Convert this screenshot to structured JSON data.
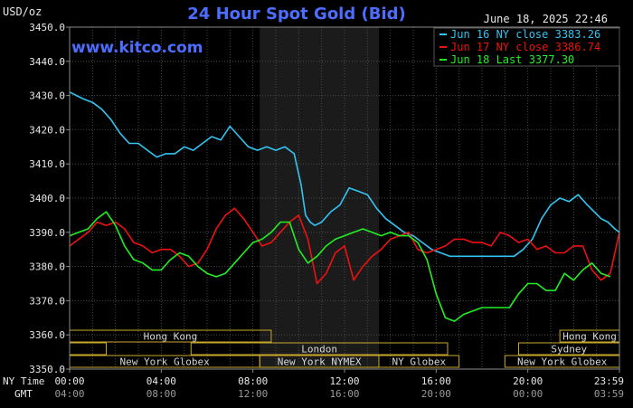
{
  "chart_data": {
    "type": "line",
    "title": "24 Hour Spot Gold (Bid)",
    "watermark": "www.kitco.com",
    "unit_label": "USD/oz",
    "timestamp": "June 18, 2025 22:46",
    "ylim": [
      3350,
      3450
    ],
    "y_ticks": [
      "3450.0",
      "3440.0",
      "3430.0",
      "3420.0",
      "3410.0",
      "3400.0",
      "3390.0",
      "3380.0",
      "3370.0",
      "3360.0",
      "3350.0"
    ],
    "x_axis_label": "NY Time",
    "x_ticks": [
      "00:00",
      "04:00",
      "08:00",
      "12:00",
      "16:00",
      "20:00",
      "23:59"
    ],
    "gmt_axis_label": "GMT",
    "gmt_ticks": [
      "04:00",
      "08:00",
      "12:00",
      "16:00",
      "20:00",
      "00:00",
      "03:59"
    ],
    "xlim": [
      0,
      24
    ],
    "grid": true,
    "legend_position": "top-right",
    "shaded_region": [
      8.3,
      13.5
    ],
    "series": [
      {
        "name": "Jun 16 NY close 3383.26",
        "color": "#33c4f2",
        "x": [
          0,
          0.3,
          0.6,
          1.0,
          1.4,
          1.8,
          2.2,
          2.6,
          3.0,
          3.4,
          3.8,
          4.2,
          4.6,
          5.0,
          5.4,
          5.8,
          6.2,
          6.6,
          7.0,
          7.4,
          7.8,
          8.2,
          8.6,
          9.0,
          9.4,
          9.8,
          10.1,
          10.3,
          10.5,
          10.7,
          11.0,
          11.4,
          11.8,
          12.2,
          12.6,
          13.0,
          13.4,
          13.8,
          14.2,
          14.6,
          15.0,
          15.4,
          15.8,
          16.2,
          16.6,
          17.0,
          17.4,
          17.8,
          18.2,
          18.6,
          19.0,
          19.4,
          19.8,
          20.2,
          20.6,
          21.0,
          21.4,
          21.8,
          22.2,
          22.6,
          22.9,
          23.2,
          23.5,
          23.8,
          24.0
        ],
        "y": [
          3431,
          3430,
          3429,
          3428,
          3426,
          3423,
          3419,
          3416,
          3416,
          3414,
          3412,
          3413,
          3413,
          3415,
          3414,
          3416,
          3418,
          3417,
          3421,
          3418,
          3415,
          3414,
          3415,
          3414,
          3415,
          3413,
          3404,
          3395,
          3393,
          3392,
          3393,
          3396,
          3398,
          3403,
          3402,
          3401,
          3397,
          3394,
          3392,
          3390,
          3389,
          3387,
          3385,
          3384,
          3383,
          3383,
          3383,
          3383,
          3383,
          3383,
          3383,
          3383,
          3385,
          3388,
          3394,
          3398,
          3400,
          3399,
          3401,
          3398,
          3396,
          3394,
          3393,
          3391,
          3390
        ]
      },
      {
        "name": "Jun 17 NY close 3386.74",
        "color": "#ee1111",
        "x": [
          0,
          0.4,
          0.8,
          1.2,
          1.6,
          2.0,
          2.4,
          2.8,
          3.2,
          3.6,
          4.0,
          4.4,
          4.8,
          5.2,
          5.6,
          6.0,
          6.4,
          6.8,
          7.2,
          7.6,
          8.0,
          8.4,
          8.8,
          9.2,
          9.6,
          10.0,
          10.4,
          10.8,
          11.2,
          11.6,
          12.0,
          12.4,
          12.8,
          13.2,
          13.6,
          14.0,
          14.4,
          14.8,
          15.2,
          15.6,
          16.0,
          16.4,
          16.8,
          17.2,
          17.6,
          18.0,
          18.4,
          18.8,
          19.2,
          19.6,
          20.0,
          20.4,
          20.8,
          21.2,
          21.6,
          22.0,
          22.4,
          22.8,
          23.2,
          23.6,
          24.0
        ],
        "y": [
          3386,
          3388,
          3390,
          3393,
          3392,
          3393,
          3391,
          3387,
          3386,
          3384,
          3385,
          3385,
          3383,
          3380,
          3381,
          3385,
          3391,
          3395,
          3397,
          3394,
          3390,
          3386,
          3387,
          3390,
          3393,
          3395,
          3388,
          3375,
          3378,
          3384,
          3386,
          3376,
          3380,
          3383,
          3385,
          3388,
          3389,
          3390,
          3385,
          3384,
          3385,
          3386,
          3388,
          3388,
          3387,
          3387,
          3386,
          3390,
          3389,
          3387,
          3388,
          3385,
          3386,
          3384,
          3384,
          3386,
          3386,
          3379,
          3376,
          3378,
          3390
        ]
      },
      {
        "name": "Jun 18 Last 3377.30",
        "color": "#22ee22",
        "x": [
          0,
          0.4,
          0.8,
          1.2,
          1.6,
          2.0,
          2.4,
          2.8,
          3.2,
          3.6,
          4.0,
          4.4,
          4.8,
          5.2,
          5.6,
          6.0,
          6.4,
          6.8,
          7.2,
          7.6,
          8.0,
          8.4,
          8.8,
          9.2,
          9.6,
          10.0,
          10.4,
          10.8,
          11.2,
          11.6,
          12.0,
          12.4,
          12.8,
          13.2,
          13.6,
          14.0,
          14.4,
          14.8,
          15.2,
          15.6,
          16.0,
          16.4,
          16.8,
          17.2,
          17.6,
          18.0,
          18.4,
          18.8,
          19.2,
          19.6,
          20.0,
          20.4,
          20.8,
          21.2,
          21.6,
          22.0,
          22.4,
          22.8,
          23.2,
          23.6
        ],
        "y": [
          3389,
          3390,
          3391,
          3394,
          3396,
          3392,
          3386,
          3382,
          3381,
          3379,
          3379,
          3382,
          3384,
          3383,
          3380,
          3378,
          3377,
          3378,
          3381,
          3384,
          3387,
          3388,
          3390,
          3393,
          3393,
          3385,
          3381,
          3383,
          3386,
          3388,
          3389,
          3390,
          3391,
          3390,
          3389,
          3390,
          3389,
          3389,
          3387,
          3382,
          3372,
          3365,
          3364,
          3366,
          3367,
          3368,
          3368,
          3368,
          3368,
          3372,
          3375,
          3375,
          3373,
          3373,
          3378,
          3376,
          3379,
          3381,
          3378,
          3377
        ]
      }
    ],
    "sessions": [
      {
        "label": "Hong Kong",
        "start": 0.0,
        "end": 8.8,
        "row": 0
      },
      {
        "label": "Hong Kong",
        "start": 21.4,
        "end": 24.0,
        "row": 0
      },
      {
        "label": "",
        "start": 0.0,
        "end": 1.6,
        "row": 1
      },
      {
        "label": "London",
        "start": 5.3,
        "end": 16.5,
        "row": 1
      },
      {
        "label": "Sydney",
        "start": 19.6,
        "end": 24.0,
        "row": 1
      },
      {
        "label": "New York Globex",
        "start": 0.0,
        "end": 8.3,
        "row": 2
      },
      {
        "label": "New York NYMEX",
        "start": 8.3,
        "end": 13.5,
        "row": 2
      },
      {
        "label": "NY Globex",
        "start": 13.5,
        "end": 17.0,
        "row": 2
      },
      {
        "label": "New York Globex",
        "start": 19.0,
        "end": 24.0,
        "row": 2
      }
    ]
  }
}
